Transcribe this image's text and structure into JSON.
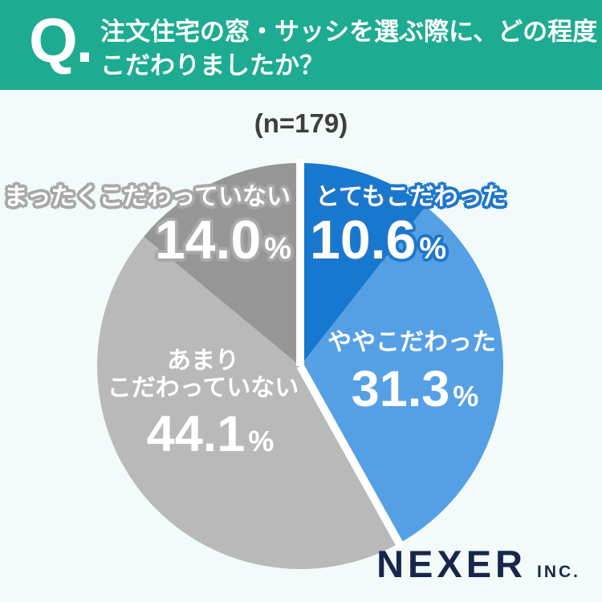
{
  "header": {
    "q_label": "Q.",
    "title_line1": "注文住宅の窓・サッシを選ぶ際に、どの程度",
    "title_line2": "こだわりましたか？"
  },
  "chart_data": {
    "type": "pie",
    "title": "注文住宅の窓・サッシを選ぶ際に、どの程度こだわりましたか？",
    "sample_label": "(n=179)",
    "sample_size": 179,
    "start_angle_deg": 0,
    "direction": "clockwise",
    "legend_position": "none",
    "segments": [
      {
        "label": "とてもこだわった",
        "value": 10.6,
        "display": "10.6",
        "unit": "%",
        "color": "#1678ce"
      },
      {
        "label": "ややこだわった",
        "value": 31.3,
        "display": "31.3",
        "unit": "%",
        "color": "#55a0e5"
      },
      {
        "label": "あまりこだわっていない",
        "label_lines": [
          "あまり",
          "こだわっていない"
        ],
        "value": 44.1,
        "display": "44.1",
        "unit": "%",
        "color": "#b9b9ba"
      },
      {
        "label": "まったくこだわっていない",
        "value": 14.0,
        "display": "14.0",
        "unit": "%",
        "color": "#969697"
      }
    ]
  },
  "footer": {
    "brand": "NEXER",
    "brand_suffix": "INC."
  },
  "theme": {
    "header_bg": "#1dac91",
    "page_bg": "#f2fbf9",
    "brand_color": "#18264c",
    "sample_color": "#3e3e3e",
    "separator": "#ffffff",
    "label_text": "#ffffff",
    "outline_blue": "#1f77cb",
    "outline_gray": "#a8a8aa"
  }
}
